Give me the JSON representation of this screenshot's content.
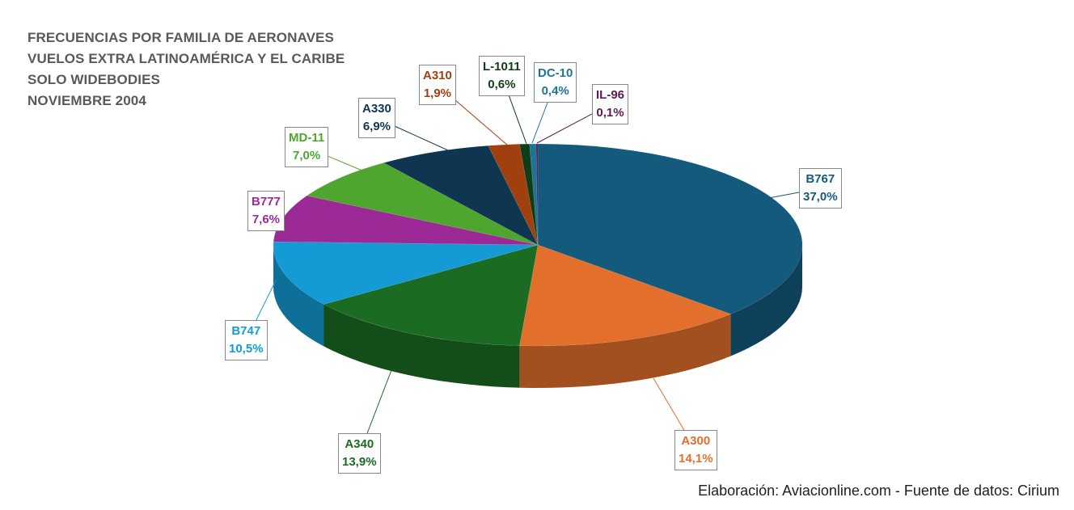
{
  "title_lines": [
    "FRECUENCIAS POR FAMILIA DE AERONAVES",
    "VUELOS EXTRA LATINOAMÉRICA Y EL CARIBE",
    "SOLO WIDEBODIES",
    "NOVIEMBRE 2004"
  ],
  "footer": "Elaboración: Aviacionline.com - Fuente de datos: Cirium",
  "chart_data": {
    "type": "pie",
    "style": "3d-exploded-label-callouts",
    "title": "FRECUENCIAS POR FAMILIA DE AERONAVES / VUELOS EXTRA LATINOAMÉRICA Y EL CARIBE / SOLO WIDEBODIES / NOVIEMBRE 2004",
    "slices": [
      {
        "label": "B767",
        "value": 37.0,
        "display": "37,0%",
        "color": "#145a7c"
      },
      {
        "label": "A300",
        "value": 14.1,
        "display": "14,1%",
        "color": "#e36f2c"
      },
      {
        "label": "A340",
        "value": 13.9,
        "display": "13,9%",
        "color": "#1b6b23"
      },
      {
        "label": "B747",
        "value": 10.5,
        "display": "10,5%",
        "color": "#149bd5"
      },
      {
        "label": "B777",
        "value": 7.6,
        "display": "7,6%",
        "color": "#9b2a97"
      },
      {
        "label": "MD-11",
        "value": 7.0,
        "display": "7,0%",
        "color": "#4ea62f"
      },
      {
        "label": "A330",
        "value": 6.9,
        "display": "6,9%",
        "color": "#0e3651"
      },
      {
        "label": "A310",
        "value": 1.9,
        "display": "1,9%",
        "color": "#a1400f"
      },
      {
        "label": "L-1011",
        "value": 0.6,
        "display": "0,6%",
        "color": "#0f3d17"
      },
      {
        "label": "DC-10",
        "value": 0.4,
        "display": "0,4%",
        "color": "#1e7397"
      },
      {
        "label": "IL-96",
        "value": 0.1,
        "display": "0,1%",
        "color": "#5a1b55"
      }
    ],
    "label_text_colors": {
      "B767": "#145a7c",
      "A300": "#e36f2c",
      "A340": "#1b6b23",
      "B747": "#149bd5",
      "B777": "#9b2a97",
      "MD-11": "#4ea62f",
      "A330": "#0e3651",
      "A310": "#a1400f",
      "L-1011": "#0f3d17",
      "DC-10": "#1e7397",
      "IL-96": "#5a1b55"
    }
  }
}
